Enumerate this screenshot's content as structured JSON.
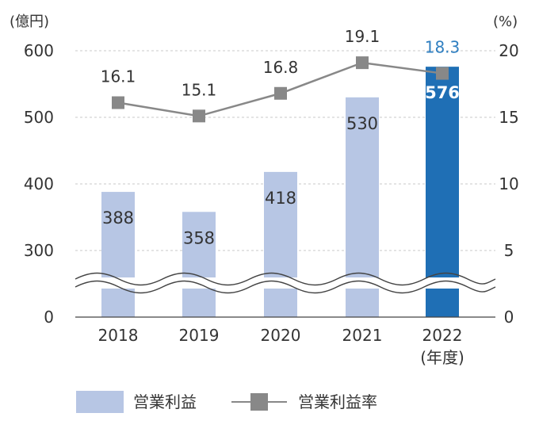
{
  "chart_data": {
    "type": "bar+line",
    "unit_left": "(億円)",
    "unit_right": "(%)",
    "x_axis_unit": "(年度)",
    "categories": [
      "2018",
      "2019",
      "2020",
      "2021",
      "2022"
    ],
    "y_left_ticks": [
      "0",
      "300",
      "400",
      "500",
      "600"
    ],
    "y_left_range": [
      200,
      600
    ],
    "y_right_ticks": [
      "0",
      "5",
      "10",
      "15",
      "20"
    ],
    "y_right_range": [
      0,
      20
    ],
    "axis_break": true,
    "grid": "horizontal dashed",
    "series": [
      {
        "name": "営業利益",
        "type": "bar",
        "axis": "left",
        "values": [
          388,
          358,
          418,
          530,
          576
        ],
        "labels": [
          "388",
          "358",
          "418",
          "530",
          "576"
        ],
        "color": "#b7c6e4",
        "highlight_index": 4,
        "highlight_color": "#1f6fb5"
      },
      {
        "name": "営業利益率",
        "type": "line",
        "axis": "right",
        "values": [
          16.1,
          15.1,
          16.8,
          19.1,
          18.3
        ],
        "labels": [
          "16.1",
          "15.1",
          "16.8",
          "19.1",
          "18.3"
        ],
        "color": "#888888",
        "highlight_index": 4,
        "highlight_color": "#2f7fc1"
      }
    ],
    "legend_position": "bottom"
  }
}
